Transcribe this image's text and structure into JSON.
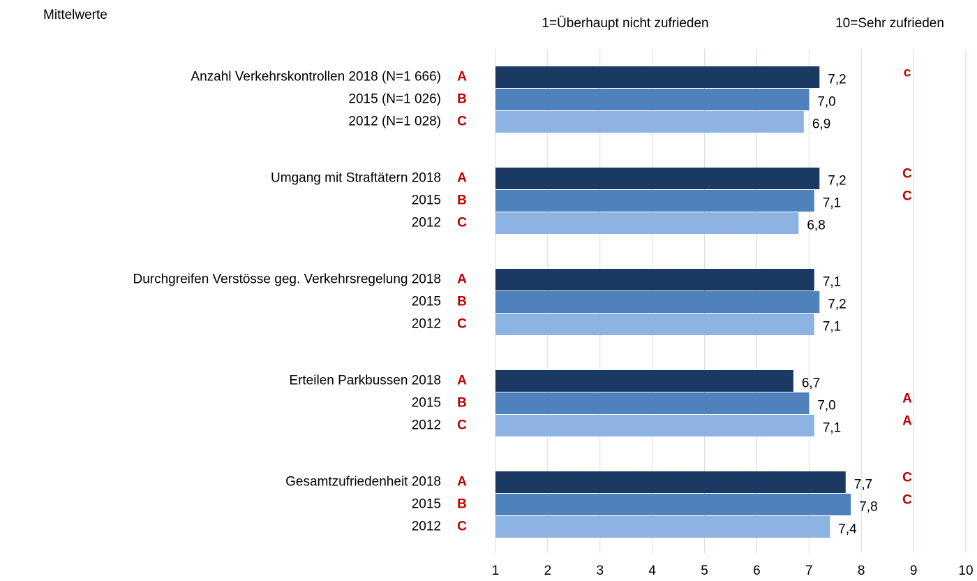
{
  "chart_data": {
    "type": "bar",
    "orientation": "horizontal",
    "subtitle": "Mittelwerte",
    "annotations": [
      "1=Überhaupt nicht zufrieden",
      "10=Sehr zufrieden"
    ],
    "xlim": [
      1,
      10
    ],
    "xticks": [
      1,
      2,
      3,
      4,
      5,
      6,
      7,
      8,
      9,
      10
    ],
    "grid": true,
    "series": [
      {
        "color": "#1b3a63",
        "letter": "A",
        "labels": [
          "Anzahl Verkehrskontrollen 2018 (N=1 666)",
          "Umgang mit Straftätern 2018",
          "Durchgreifen Verstösse geg. Verkehrsregelung 2018",
          "Erteilen Parkbussen 2018",
          "Gesamtzufriedenheit 2018"
        ],
        "values": [
          7.2,
          7.2,
          7.1,
          6.7,
          7.7
        ],
        "value_labels": [
          "7,2",
          "7,2",
          "7,1",
          "6,7",
          "7,7"
        ],
        "sig_labels": [
          "c",
          "C",
          null,
          null,
          "C"
        ]
      },
      {
        "color": "#4f81bd",
        "letter": "B",
        "labels": [
          "2015 (N=1 026)",
          "2015",
          "2015",
          "2015",
          "2015"
        ],
        "values": [
          7.0,
          7.1,
          7.2,
          7.0,
          7.8
        ],
        "value_labels": [
          "7,0",
          "7,1",
          "7,2",
          "7,0",
          "7,8"
        ],
        "sig_labels": [
          null,
          "C",
          null,
          "A",
          "C"
        ]
      },
      {
        "color": "#8db3e2",
        "letter": "C",
        "labels": [
          "2012 (N=1 028)",
          "2012",
          "2012",
          "2012",
          "2012"
        ],
        "values": [
          6.9,
          6.8,
          7.1,
          7.1,
          7.4
        ],
        "value_labels": [
          "6,9",
          "6,8",
          "7,1",
          "7,1",
          "7,4"
        ],
        "sig_labels": [
          null,
          null,
          null,
          "A",
          null
        ]
      }
    ]
  }
}
